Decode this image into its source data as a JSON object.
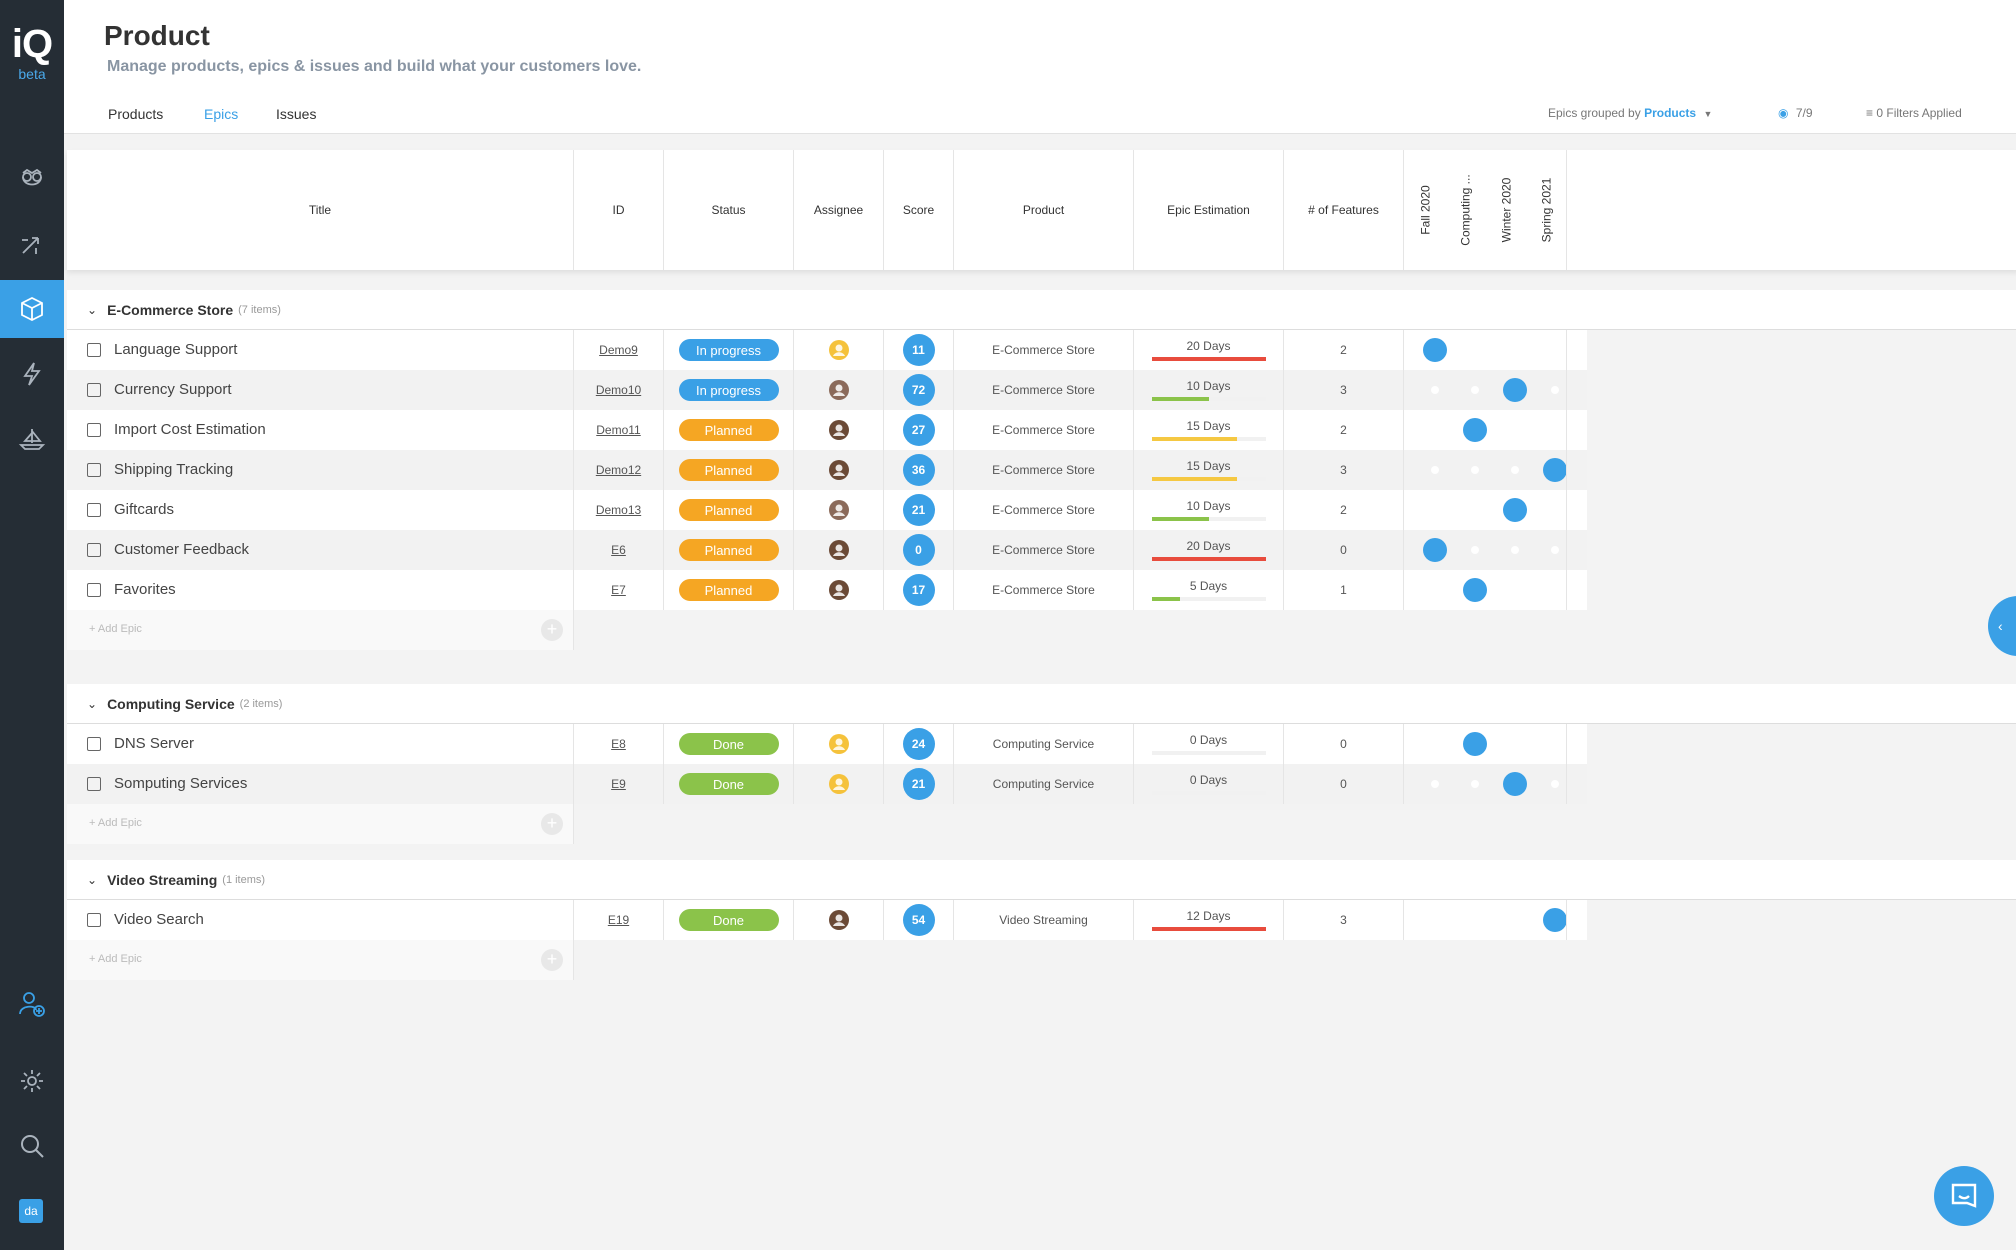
{
  "app": {
    "logo": "iQ",
    "logo_badge": "beta"
  },
  "header": {
    "title": "Product",
    "subtitle": "Manage products, epics & issues and build what your customers love.",
    "tabs": [
      {
        "label": "Products"
      },
      {
        "label": "Epics"
      },
      {
        "label": "Issues"
      }
    ],
    "group_by_label": "Epics grouped by",
    "group_by_value": "Products",
    "visible_count": "7/9",
    "filters": "0 Filters Applied"
  },
  "columns": {
    "title": "Title",
    "id": "ID",
    "status": "Status",
    "assignee": "Assignee",
    "score": "Score",
    "product": "Product",
    "estimation": "Epic Estimation",
    "features": "# of Features",
    "timeline": [
      "Fall 2020",
      "Computing ...",
      "Winter 2020",
      "Spring 2021"
    ]
  },
  "groups": [
    {
      "name": "E-Commerce Store",
      "count": "(7 items)",
      "rows": [
        {
          "title": "Language Support",
          "id": "Demo9",
          "status": "In progress",
          "score": "11",
          "product": "E-Commerce Store",
          "est": "20 Days",
          "est_fill": 1.0,
          "features": "2",
          "slot": 0
        },
        {
          "title": "Currency Support",
          "id": "Demo10",
          "status": "In progress",
          "score": "72",
          "product": "E-Commerce Store",
          "est": "10 Days",
          "est_fill": 0.5,
          "features": "3",
          "slot": 2
        },
        {
          "title": "Import Cost Estimation",
          "id": "Demo11",
          "status": "Planned",
          "score": "27",
          "product": "E-Commerce Store",
          "est": "15 Days",
          "est_fill": 0.75,
          "features": "2",
          "slot": 1
        },
        {
          "title": "Shipping Tracking",
          "id": "Demo12",
          "status": "Planned",
          "score": "36",
          "product": "E-Commerce Store",
          "est": "15 Days",
          "est_fill": 0.75,
          "features": "3",
          "slot": 3
        },
        {
          "title": "Giftcards",
          "id": "Demo13",
          "status": "Planned",
          "score": "21",
          "product": "E-Commerce Store",
          "est": "10 Days",
          "est_fill": 0.5,
          "features": "2",
          "slot": 2
        },
        {
          "title": "Customer Feedback",
          "id": "E6",
          "status": "Planned",
          "score": "0",
          "product": "E-Commerce Store",
          "est": "20 Days",
          "est_fill": 1.0,
          "features": "0",
          "slot": 0
        },
        {
          "title": "Favorites",
          "id": "E7",
          "status": "Planned",
          "score": "17",
          "product": "E-Commerce Store",
          "est": "5 Days",
          "est_fill": 0.25,
          "features": "1",
          "slot": 1
        }
      ]
    },
    {
      "name": "Computing Service",
      "count": "(2 items)",
      "rows": [
        {
          "title": "DNS Server",
          "id": "E8",
          "status": "Done",
          "score": "24",
          "product": "Computing Service",
          "est": "0 Days",
          "est_fill": 0,
          "features": "0",
          "slot": 1
        },
        {
          "title": "Somputing Services",
          "id": "E9",
          "status": "Done",
          "score": "21",
          "product": "Computing Service",
          "est": "0 Days",
          "est_fill": 0,
          "features": "0",
          "slot": 2
        }
      ]
    },
    {
      "name": "Video Streaming",
      "count": "(1 items)",
      "rows": [
        {
          "title": "Video Search",
          "id": "E19",
          "status": "Done",
          "score": "54",
          "product": "Video Streaming",
          "est": "12 Days",
          "est_fill": 1.0,
          "features": "3",
          "slot": 3
        }
      ]
    }
  ],
  "add_epic_label": "+ Add Epic",
  "user_badge": "da",
  "colors": {
    "accent": "#3aa0e6",
    "planned": "#f5a623",
    "done": "#8bc34a",
    "over": "#e84c3d",
    "bar_yellow": "#f5c842",
    "bar_green": "#8bc34a"
  }
}
